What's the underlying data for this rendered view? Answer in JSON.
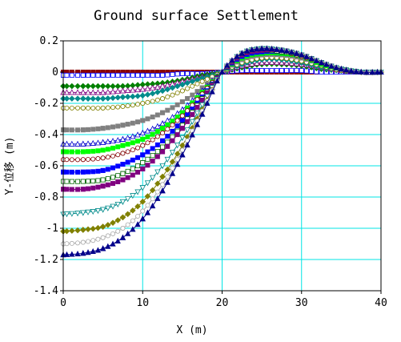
{
  "chart_data": {
    "type": "line",
    "title": "Ground surface Settlement",
    "xlabel": "X (m)",
    "ylabel": "Y-位移 (m)",
    "xlim": [
      0,
      40
    ],
    "ylim": [
      -1.4,
      0.2
    ],
    "grid": true,
    "grid_color": "#00e5e5",
    "x_ticks": [
      {
        "value": 0,
        "label": "0"
      },
      {
        "value": 10,
        "label": "10"
      },
      {
        "value": 20,
        "label": "20"
      },
      {
        "value": 30,
        "label": "30"
      },
      {
        "value": 40,
        "label": "40"
      }
    ],
    "y_ticks": [
      {
        "value": 0.2,
        "label": "0.2"
      },
      {
        "value": 0,
        "label": "0"
      },
      {
        "value": -0.2,
        "label": "-0.2"
      },
      {
        "value": -0.4,
        "label": "-0.4"
      },
      {
        "value": -0.6,
        "label": "-0.6"
      },
      {
        "value": -0.8,
        "label": "-0.8"
      },
      {
        "value": -1,
        "label": "-1"
      },
      {
        "value": -1.2,
        "label": "-1.2"
      },
      {
        "value": -1.4,
        "label": "-1.4"
      }
    ],
    "x": [
      0,
      2.5,
      5,
      7.5,
      10,
      12.5,
      15,
      17.5,
      20,
      22.5,
      25,
      27.5,
      30,
      32.5,
      35,
      37.5,
      40
    ],
    "series": [
      {
        "color": "#8b0000",
        "marker": "square",
        "values": [
          0.0,
          0.0,
          0.0,
          0.0,
          0.0,
          0.0,
          0.0,
          0.0,
          0.0,
          0.0,
          0.0,
          0.0,
          0.0,
          0.0,
          0.0,
          0.0,
          0.0
        ]
      },
      {
        "color": "#0000ff",
        "marker": "square-open",
        "values": [
          -0.02,
          -0.02,
          -0.02,
          -0.02,
          -0.02,
          -0.02,
          -0.01,
          -0.01,
          0.0,
          0.01,
          0.01,
          0.01,
          0.01,
          0.0,
          0.0,
          0.0,
          0.0
        ]
      },
      {
        "color": "#008000",
        "marker": "diamond",
        "values": [
          -0.09,
          -0.09,
          -0.09,
          -0.09,
          -0.08,
          -0.07,
          -0.05,
          -0.02,
          0.0,
          0.03,
          0.05,
          0.05,
          0.04,
          0.02,
          0.01,
          0.0,
          0.0
        ]
      },
      {
        "color": "#800080",
        "marker": "triangle-open",
        "values": [
          -0.13,
          -0.13,
          -0.13,
          -0.12,
          -0.11,
          -0.09,
          -0.06,
          -0.03,
          0.0,
          0.04,
          0.06,
          0.06,
          0.05,
          0.03,
          0.01,
          0.0,
          0.0
        ]
      },
      {
        "color": "#008b8b",
        "marker": "diamond",
        "values": [
          -0.17,
          -0.17,
          -0.17,
          -0.16,
          -0.15,
          -0.12,
          -0.08,
          -0.04,
          0.0,
          0.05,
          0.08,
          0.08,
          0.06,
          0.03,
          0.01,
          0.0,
          0.0
        ]
      },
      {
        "color": "#808000",
        "marker": "circle-open",
        "values": [
          -0.23,
          -0.23,
          -0.23,
          -0.22,
          -0.2,
          -0.17,
          -0.12,
          -0.06,
          0.0,
          0.06,
          0.09,
          0.09,
          0.07,
          0.04,
          0.01,
          0.0,
          0.0
        ]
      },
      {
        "color": "#808080",
        "marker": "square",
        "values": [
          -0.37,
          -0.37,
          -0.36,
          -0.34,
          -0.31,
          -0.26,
          -0.19,
          -0.1,
          0.0,
          0.08,
          0.11,
          0.11,
          0.09,
          0.05,
          0.02,
          0.0,
          0.0
        ]
      },
      {
        "color": "#0000cd",
        "marker": "triangle-open",
        "values": [
          -0.46,
          -0.46,
          -0.45,
          -0.43,
          -0.39,
          -0.33,
          -0.24,
          -0.12,
          0.0,
          0.09,
          0.12,
          0.12,
          0.1,
          0.05,
          0.02,
          0.0,
          0.0
        ]
      },
      {
        "color": "#00ff00",
        "marker": "square",
        "values": [
          -0.51,
          -0.51,
          -0.5,
          -0.47,
          -0.43,
          -0.36,
          -0.26,
          -0.13,
          0.0,
          0.09,
          0.12,
          0.12,
          0.1,
          0.05,
          0.02,
          0.0,
          0.0
        ]
      },
      {
        "color": "#800000",
        "marker": "circle-open",
        "values": [
          -0.56,
          -0.56,
          -0.55,
          -0.52,
          -0.47,
          -0.39,
          -0.28,
          -0.14,
          0.0,
          0.1,
          0.13,
          0.13,
          0.1,
          0.06,
          0.02,
          0.0,
          0.0
        ]
      },
      {
        "color": "#0000ff",
        "marker": "square",
        "values": [
          -0.64,
          -0.64,
          -0.63,
          -0.59,
          -0.53,
          -0.44,
          -0.31,
          -0.16,
          0.0,
          0.1,
          0.13,
          0.13,
          0.11,
          0.06,
          0.02,
          0.0,
          0.0
        ]
      },
      {
        "color": "#006400",
        "marker": "square-open",
        "values": [
          -0.7,
          -0.7,
          -0.69,
          -0.65,
          -0.58,
          -0.48,
          -0.34,
          -0.17,
          0.0,
          0.11,
          0.14,
          0.13,
          0.11,
          0.06,
          0.02,
          0.0,
          0.0
        ]
      },
      {
        "color": "#800080",
        "marker": "square",
        "values": [
          -0.75,
          -0.75,
          -0.73,
          -0.69,
          -0.62,
          -0.51,
          -0.36,
          -0.18,
          0.0,
          0.11,
          0.14,
          0.14,
          0.11,
          0.06,
          0.02,
          0.0,
          0.0
        ]
      },
      {
        "color": "#008b8b",
        "marker": "triangle-down-open",
        "values": [
          -0.91,
          -0.9,
          -0.88,
          -0.83,
          -0.74,
          -0.6,
          -0.42,
          -0.21,
          0.0,
          0.12,
          0.15,
          0.14,
          0.11,
          0.06,
          0.02,
          0.0,
          0.0
        ]
      },
      {
        "color": "#808000",
        "marker": "diamond",
        "values": [
          -1.02,
          -1.01,
          -0.99,
          -0.93,
          -0.83,
          -0.67,
          -0.47,
          -0.24,
          0.0,
          0.12,
          0.15,
          0.14,
          0.11,
          0.06,
          0.02,
          0.0,
          0.0
        ]
      },
      {
        "color": "#a9a9a9",
        "marker": "circle-open",
        "values": [
          -1.1,
          -1.09,
          -1.06,
          -1.0,
          -0.89,
          -0.72,
          -0.5,
          -0.25,
          0.0,
          0.12,
          0.15,
          0.14,
          0.11,
          0.06,
          0.02,
          0.0,
          0.0
        ]
      },
      {
        "color": "#00008b",
        "marker": "triangle",
        "values": [
          -1.17,
          -1.16,
          -1.13,
          -1.06,
          -0.94,
          -0.76,
          -0.53,
          -0.27,
          0.0,
          0.12,
          0.15,
          0.14,
          0.11,
          0.06,
          0.02,
          0.0,
          0.0
        ]
      }
    ]
  }
}
